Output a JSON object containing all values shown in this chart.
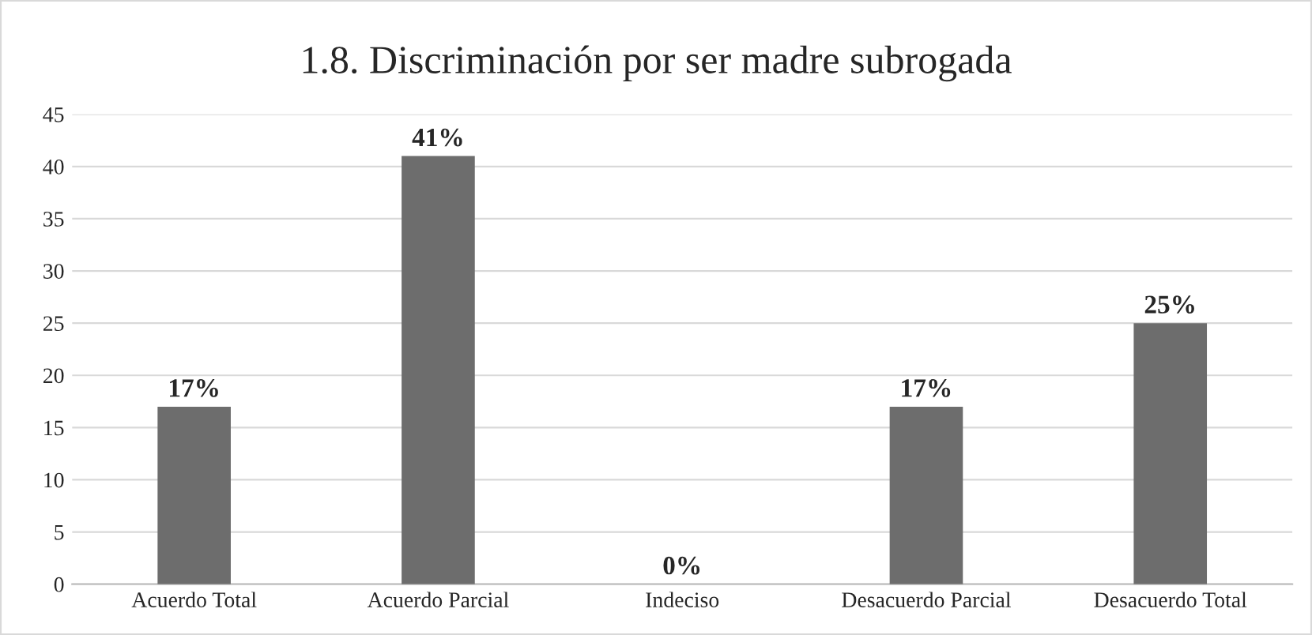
{
  "chart_data": {
    "type": "bar",
    "title": "1.8. Discriminación por ser madre subrogada",
    "categories": [
      "Acuerdo Total",
      "Acuerdo Parcial",
      "Indeciso",
      "Desacuerdo Parcial",
      "Desacuerdo Total"
    ],
    "values": [
      17,
      41,
      0,
      17,
      25
    ],
    "value_labels": [
      "17%",
      "41%",
      "0%",
      "17%",
      "25%"
    ],
    "color": "#6d6d6d",
    "ylim": [
      0,
      45
    ],
    "yticks": [
      0,
      5,
      10,
      15,
      20,
      25,
      30,
      35,
      40,
      45
    ],
    "grid": "y",
    "legend": false
  }
}
